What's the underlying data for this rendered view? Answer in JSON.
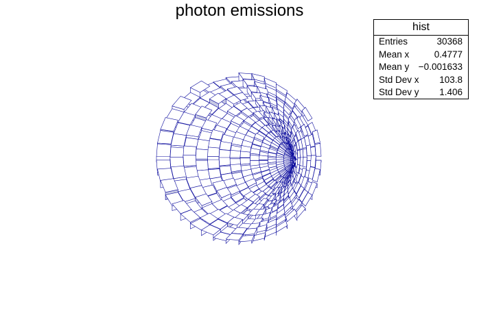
{
  "chart_data": {
    "type": "polar-lego",
    "title": "photon emissions",
    "xlabel": "",
    "ylabel": "",
    "histogram_name": "hist",
    "colors": {
      "edge": "#0a0a9c",
      "side": "#c7c9e4",
      "top": "#ffffff",
      "background": "#ffffff"
    },
    "stats": [
      {
        "label": "Entries",
        "value": "30368"
      },
      {
        "label": "Mean x",
        "value": "0.4777"
      },
      {
        "label": "Mean y",
        "value": "−0.001633"
      },
      {
        "label": "Std Dev x",
        "value": "103.8"
      },
      {
        "label": "Std Dev y",
        "value": "1.406"
      }
    ],
    "grid": false,
    "legend": "top-right"
  }
}
